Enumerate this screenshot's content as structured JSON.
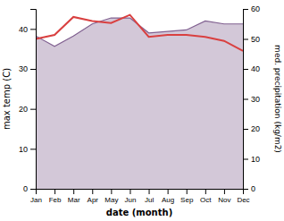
{
  "chart_data": {
    "type": "line",
    "xlabel": "date (month)",
    "ylabel": "max temp (C)",
    "y2label": "med. precipitation (kg/m2)",
    "categories": [
      "Jan",
      "Feb",
      "Mar",
      "Apr",
      "May",
      "Jun",
      "Jul",
      "Aug",
      "Sep",
      "Oct",
      "Nov",
      "Dec"
    ],
    "series": [
      {
        "type": "line",
        "color": "#d94040",
        "values": [
          37.5,
          38.5,
          43.0,
          42.0,
          41.5,
          43.5,
          38.0,
          38.5,
          38.5,
          38.0,
          37.0,
          34.5
        ]
      },
      {
        "type": "area",
        "axis": "y2",
        "color": "#806090",
        "values": [
          51.0,
          47.5,
          51.0,
          55.0,
          57.0,
          57.0,
          52.0,
          52.5,
          53.0,
          56.0,
          55.0,
          55.0
        ]
      }
    ],
    "ylim": [
      0,
      45
    ],
    "yticks": [
      0,
      10,
      20,
      30,
      40
    ],
    "y2lim": [
      0,
      60
    ],
    "y2ticks": [
      0,
      10,
      20,
      30,
      40,
      50,
      60
    ],
    "grid": false
  }
}
